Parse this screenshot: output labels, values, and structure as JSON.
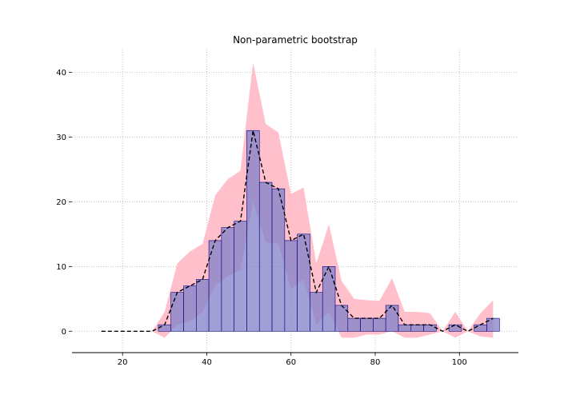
{
  "chart_data": {
    "type": "bar",
    "title": "Non-parametric bootstrap",
    "xlabel": "",
    "ylabel": "",
    "xlim": [
      8,
      114
    ],
    "ylim": [
      -3.3,
      43.5
    ],
    "xticks": [
      20,
      40,
      60,
      80,
      100
    ],
    "yticks": [
      0,
      10,
      20,
      30,
      40
    ],
    "grid": true,
    "bin_width": 3,
    "bin_centers": [
      15,
      18,
      21,
      24,
      27,
      30,
      33,
      36,
      39,
      42,
      45,
      48,
      51,
      54,
      57,
      60,
      63,
      66,
      69,
      72,
      75,
      78,
      81,
      84,
      87,
      90,
      93,
      96,
      99,
      102,
      105,
      108
    ],
    "series": [
      {
        "kind": "bar",
        "values": [
          0,
          0,
          0,
          0,
          0,
          1,
          6,
          7,
          8,
          14,
          16,
          17,
          31,
          23,
          22,
          14,
          15,
          6,
          10,
          4,
          2,
          2,
          2,
          4,
          1,
          1,
          1,
          0,
          1,
          0,
          1,
          2
        ]
      },
      {
        "kind": "band_lower",
        "values": [
          0,
          0,
          0,
          0,
          0,
          -1,
          1,
          1.5,
          3,
          7,
          8.5,
          9.5,
          20,
          13.8,
          13.5,
          6.5,
          8,
          1,
          3,
          -1,
          -1,
          -0.5,
          -0.5,
          0,
          -1,
          -1,
          -0.5,
          0,
          -1,
          0,
          -0.8,
          -1
        ]
      },
      {
        "kind": "band_upper",
        "values": [
          0,
          0,
          0,
          0,
          0,
          3,
          10.5,
          12.3,
          13.5,
          21,
          23.5,
          24.8,
          41.5,
          32,
          30.7,
          21.2,
          22.2,
          10.5,
          16.5,
          7.8,
          5,
          4.8,
          4.7,
          8.2,
          3,
          3,
          2.8,
          0,
          3,
          0,
          2.8,
          4.8
        ]
      }
    ],
    "colors": {
      "bar_fill": "#8080c8",
      "bar_edge": "#000080",
      "band": "#ffc0cb",
      "line": "#000000",
      "grid": "#b0b0b0"
    }
  }
}
